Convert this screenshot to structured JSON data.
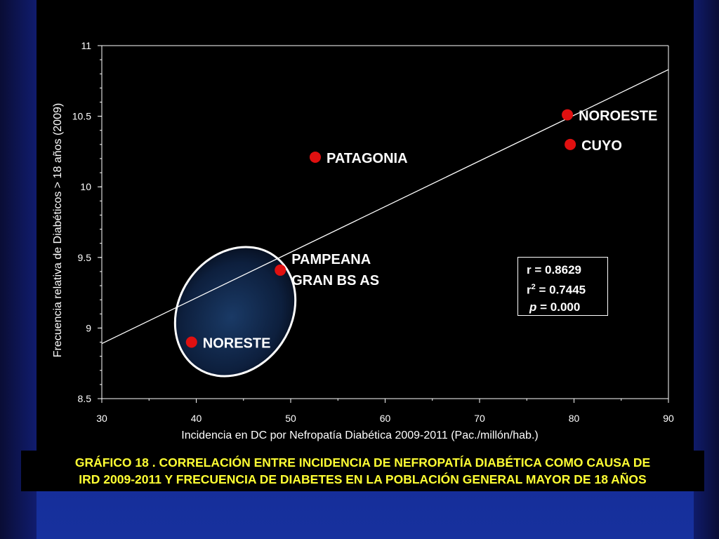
{
  "chart_data": {
    "type": "scatter",
    "xlabel": "Incidencia en DC por Nefropatía Diabética 2009-2011 (Pac./millón/hab.)",
    "ylabel": "Frecuencia relativa de Diabéticos > 18 años (2009)",
    "xlim": [
      30,
      90
    ],
    "ylim": [
      8.5,
      11
    ],
    "x_ticks": [
      "30",
      "40",
      "50",
      "60",
      "70",
      "80",
      "90"
    ],
    "y_ticks": [
      "11",
      "10.5",
      "10",
      "9.5",
      "9",
      "8.5"
    ],
    "grid": false,
    "points": [
      {
        "label": "NOROESTE",
        "x": 79.3,
        "y": 10.51
      },
      {
        "label": "CUYO",
        "x": 79.6,
        "y": 10.3
      },
      {
        "label": "PATAGONIA",
        "x": 52.6,
        "y": 10.21
      },
      {
        "label": "PAMPEANA\nGRAN BS AS",
        "x": 48.9,
        "y": 9.41
      },
      {
        "label": "NORESTE",
        "x": 39.5,
        "y": 8.9
      }
    ],
    "trendline": {
      "x": [
        30,
        90
      ],
      "y": [
        8.89,
        10.83
      ]
    },
    "colors": {
      "points": "#e01010",
      "trendline": "#ffffff",
      "text": "#ffffff"
    },
    "stats": {
      "r": "r =  0.8629",
      "r2_prefix": "r",
      "r2_sup": "2",
      "r2_value": " = 0.7445",
      "p_prefix": "p",
      "p_value": " = 0.000"
    }
  },
  "caption": {
    "line1": "GRÁFICO 18 . CORRELACIÓN ENTRE INCIDENCIA DE NEFROPATÍA DIABÉTICA COMO CAUSA DE",
    "line2": "IRD 2009-2011 Y FRECUENCIA DE DIABETES EN LA POBLACIÓN GENERAL MAYOR DE 18 AÑOS",
    "color": "#ffff33"
  },
  "background": {
    "slide": "#12238a",
    "plot": "#000000"
  }
}
